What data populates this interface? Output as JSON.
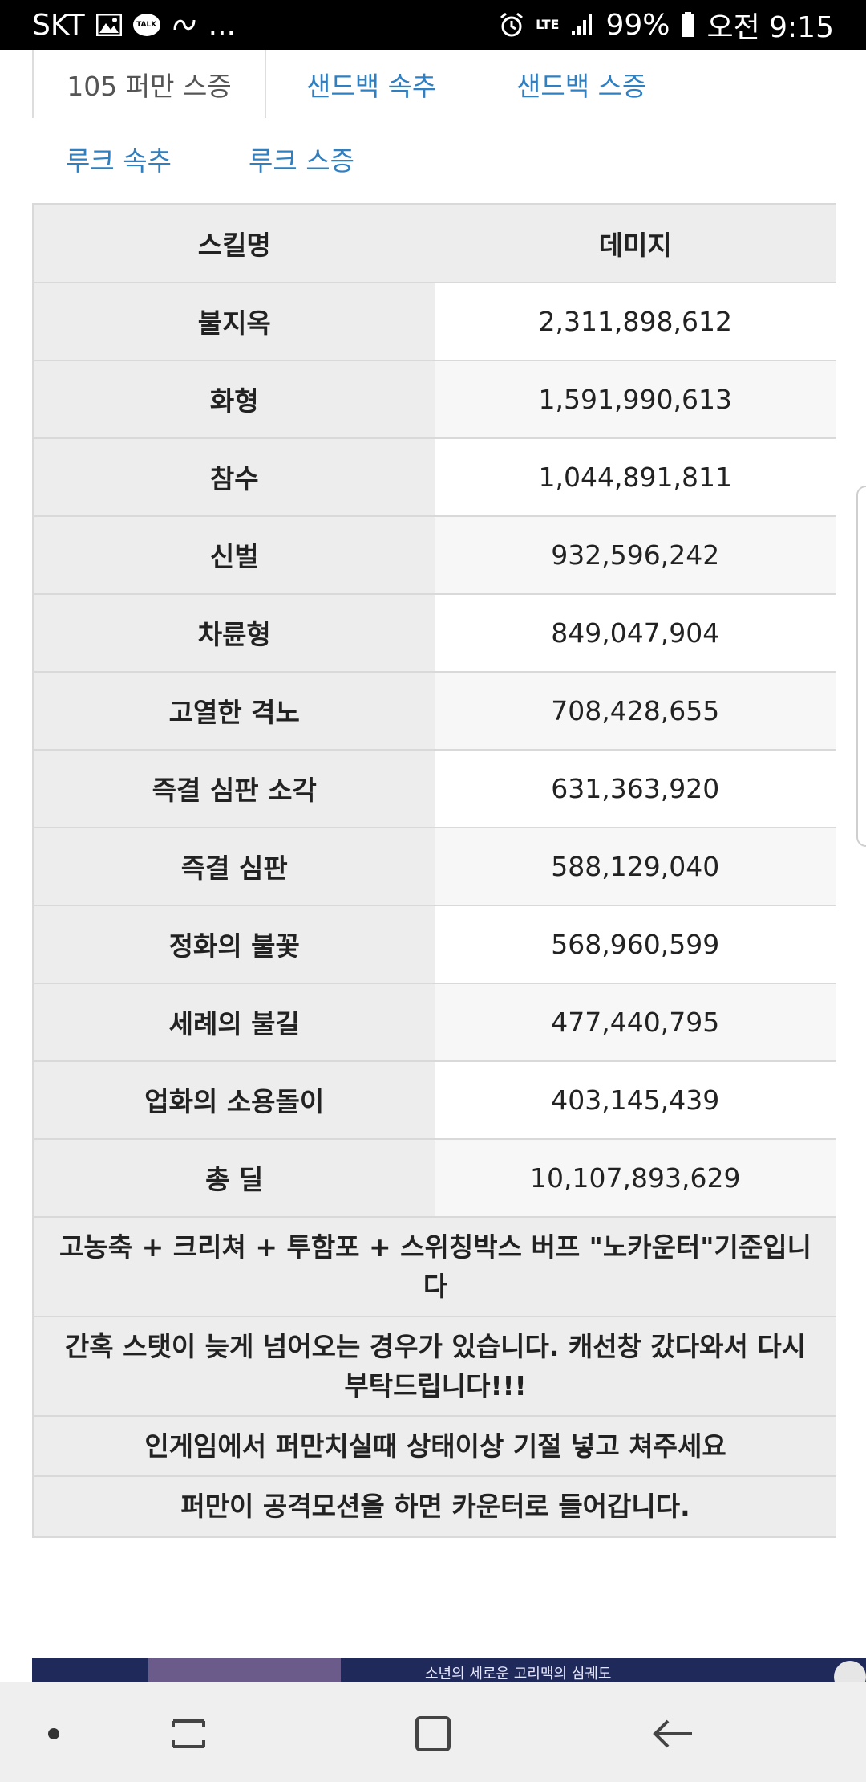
{
  "status_bar": {
    "carrier": "SKT",
    "talk_label": "TALK",
    "more_indicator": "...",
    "network": "LTE",
    "battery": "99%",
    "time": "오전 9:15"
  },
  "tabs": {
    "active": "105 퍼만 스증",
    "links_row1": [
      "샌드백 속추",
      "샌드백 스증"
    ],
    "links_row2": [
      "루크 속추",
      "루크 스증"
    ]
  },
  "table": {
    "headers": [
      "스킬명",
      "데미지"
    ],
    "rows": [
      {
        "skill": "불지옥",
        "damage": "2,311,898,612"
      },
      {
        "skill": "화형",
        "damage": "1,591,990,613"
      },
      {
        "skill": "참수",
        "damage": "1,044,891,811"
      },
      {
        "skill": "신벌",
        "damage": "932,596,242"
      },
      {
        "skill": "차륜형",
        "damage": "849,047,904"
      },
      {
        "skill": "고열한 격노",
        "damage": "708,428,655"
      },
      {
        "skill": "즉결 심판 소각",
        "damage": "631,363,920"
      },
      {
        "skill": "즉결 심판",
        "damage": "588,129,040"
      },
      {
        "skill": "정화의 불꽃",
        "damage": "568,960,599"
      },
      {
        "skill": "세례의 불길",
        "damage": "477,440,795"
      },
      {
        "skill": "업화의 소용돌이",
        "damage": "403,145,439"
      },
      {
        "skill": "총 딜",
        "damage": "10,107,893,629"
      }
    ],
    "notes": [
      "고농축 + 크리쳐 + 투함포 + 스위칭박스 버프 \"노카운터\"기준입니다",
      "간혹 스탯이 늦게 넘어오는 경우가 있습니다. 캐선창 갔다와서 다시 부탁드립니다!!!",
      "인게임에서 퍼만치실때 상태이상 기절 넣고 쳐주세요",
      "퍼만이 공격모션을 하면 카운터로 들어갑니다."
    ]
  },
  "banner": {
    "text": "소년의 세로운 고리맥의 심궤도"
  },
  "colors": {
    "link": "#2f7fc1",
    "header_bg": "#ededed",
    "border": "#d9d9d9",
    "nav_bg": "#efefef"
  },
  "icons": {
    "nav": [
      "dot-icon",
      "recent-apps-icon",
      "home-icon",
      "back-icon"
    ],
    "status": [
      "image-icon",
      "talk-icon",
      "chain-icon",
      "alarm-icon",
      "signal-icon",
      "battery-icon"
    ]
  }
}
